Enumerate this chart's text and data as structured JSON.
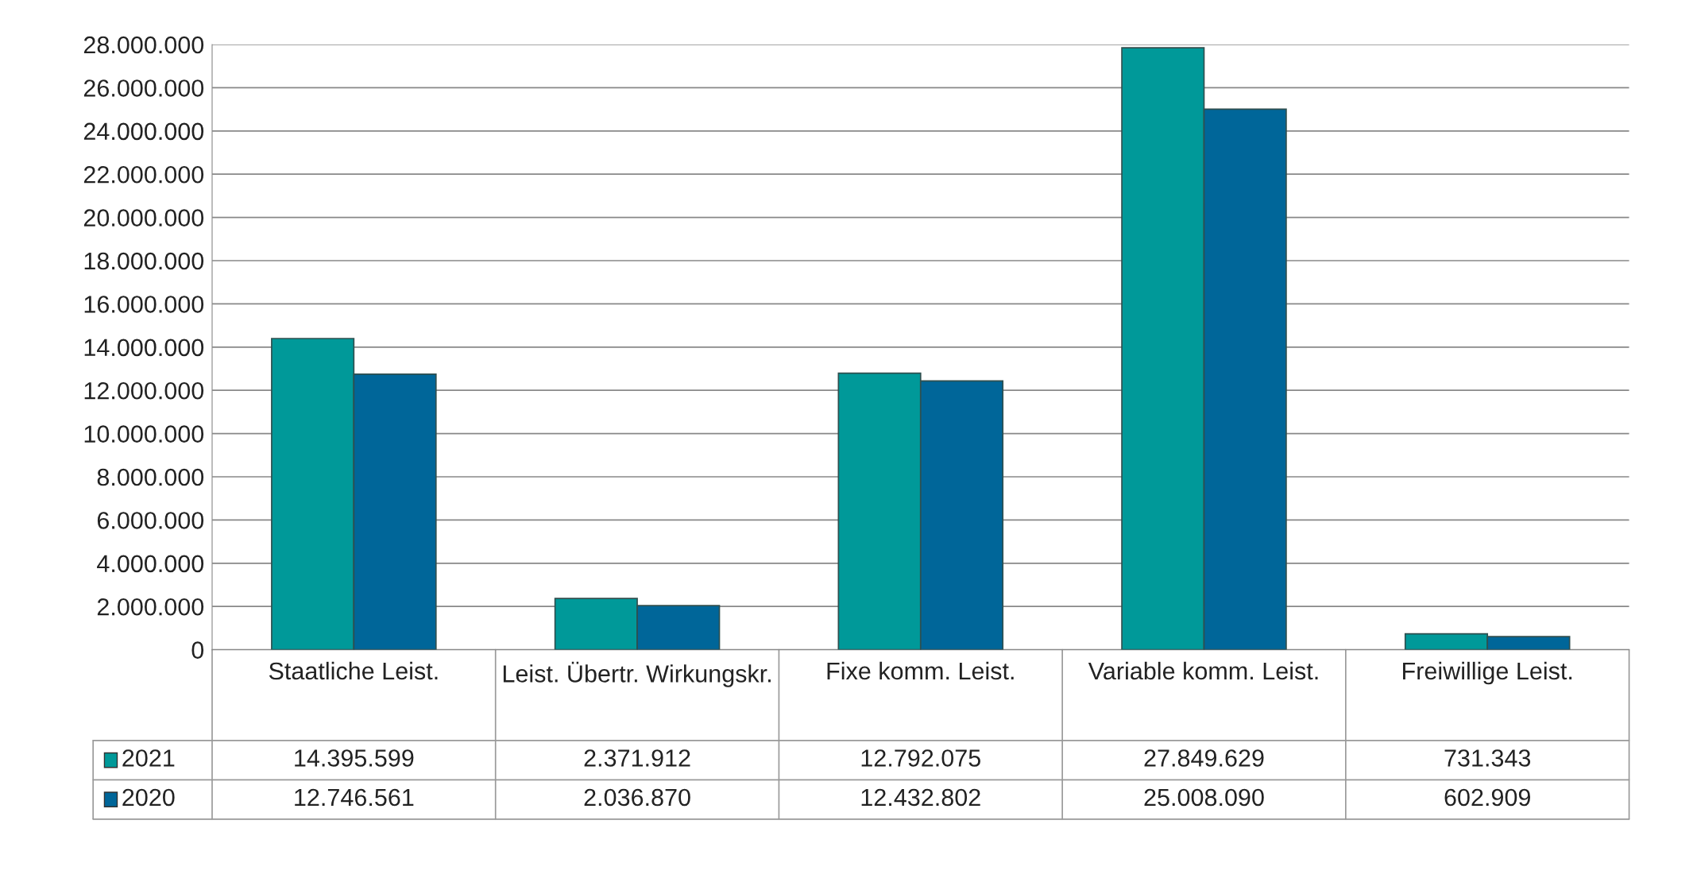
{
  "chart_data": {
    "type": "bar",
    "categories": [
      "Staatliche Leist.",
      "Leist. Übertr. Wirkungskr.",
      "Fixe komm. Leist.",
      "Variable komm. Leist.",
      "Freiwillige Leist."
    ],
    "series": [
      {
        "name": "2021",
        "color": "#009999",
        "values": [
          14395599,
          2371912,
          12792075,
          27849629,
          731343
        ],
        "value_labels": [
          "14.395.599",
          "2.371.912",
          "12.792.075",
          "27.849.629",
          "731.343"
        ]
      },
      {
        "name": "2020",
        "color": "#006699",
        "values": [
          12746561,
          2036870,
          12432802,
          25008090,
          602909
        ],
        "value_labels": [
          "12.746.561",
          "2.036.870",
          "12.432.802",
          "25.008.090",
          "602.909"
        ]
      }
    ],
    "ylim": [
      0,
      28000000
    ],
    "yticks": [
      0,
      {
        "value": 2000000,
        "label": "2.000.000"
      },
      {
        "value": 4000000,
        "label": "4.000.000"
      },
      {
        "value": 6000000,
        "label": "6.000.000"
      },
      {
        "value": 8000000,
        "label": "8.000.000"
      },
      {
        "value": 10000000,
        "label": "10.000.000"
      },
      {
        "value": 12000000,
        "label": "12.000.000"
      },
      {
        "value": 14000000,
        "label": "14.000.000"
      },
      {
        "value": 16000000,
        "label": "16.000.000"
      },
      {
        "value": 18000000,
        "label": "18.000.000"
      },
      {
        "value": 20000000,
        "label": "20.000.000"
      },
      {
        "value": 22000000,
        "label": "22.000.000"
      },
      {
        "value": 24000000,
        "label": "24.000.000"
      },
      {
        "value": 26000000,
        "label": "26.000.000"
      },
      {
        "value": 28000000,
        "label": "28.000.000"
      }
    ],
    "grid": "y",
    "legend": "bottom"
  }
}
